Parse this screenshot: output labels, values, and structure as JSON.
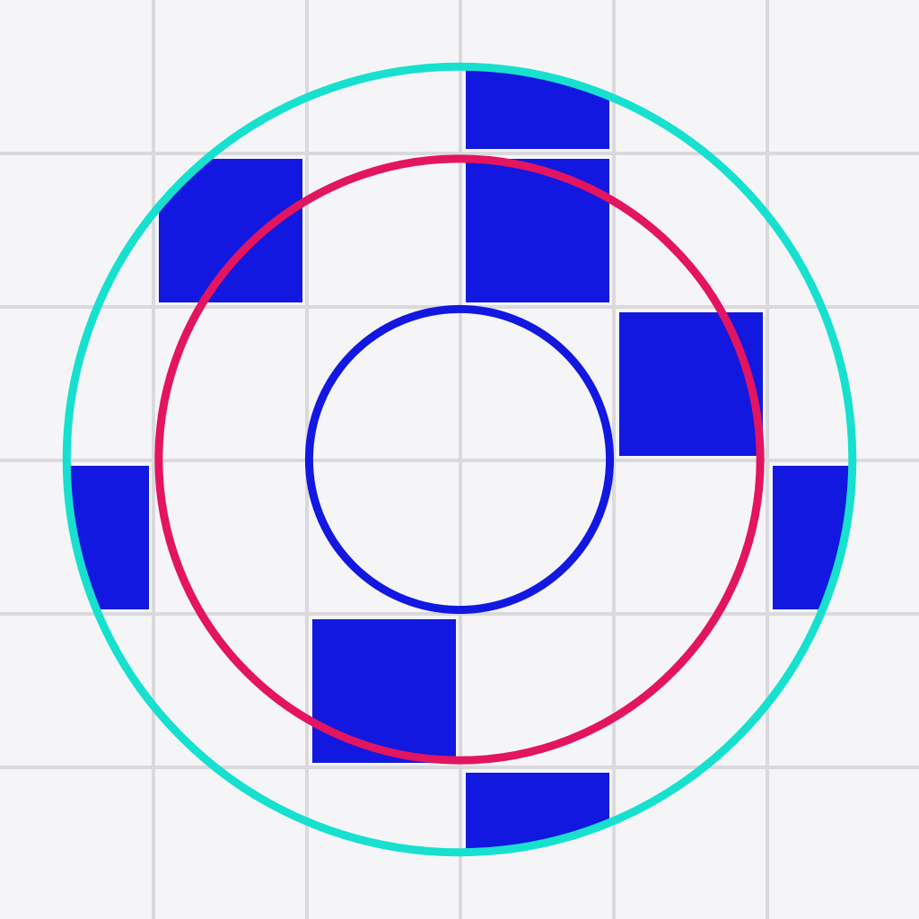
{
  "board": {
    "columns": 6,
    "rows": 6,
    "colors": {
      "background": "#f5f5f8",
      "grid_line": "#d9d9de",
      "filled_cell": "#1218e0",
      "outer_ring": "#17e0cf",
      "middle_ring": "#e31460",
      "inner_ring": "#1218e0"
    },
    "filled_cells": [
      {
        "col": 3,
        "row": 0
      },
      {
        "col": 1,
        "row": 1
      },
      {
        "col": 3,
        "row": 1
      },
      {
        "col": 4,
        "row": 2
      },
      {
        "col": 0,
        "row": 3
      },
      {
        "col": 5,
        "row": 3
      },
      {
        "col": 2,
        "row": 4
      },
      {
        "col": 3,
        "row": 5
      }
    ],
    "rings": [
      {
        "name": "outer-ring",
        "radius_cells": 2.56,
        "color_key": "outer_ring",
        "clips_cells": true
      },
      {
        "name": "middle-ring",
        "radius_cells": 1.96,
        "color_key": "middle_ring",
        "clips_cells": false
      },
      {
        "name": "inner-ring",
        "radius_cells": 0.98,
        "color_key": "inner_ring",
        "clips_cells": false
      }
    ]
  }
}
